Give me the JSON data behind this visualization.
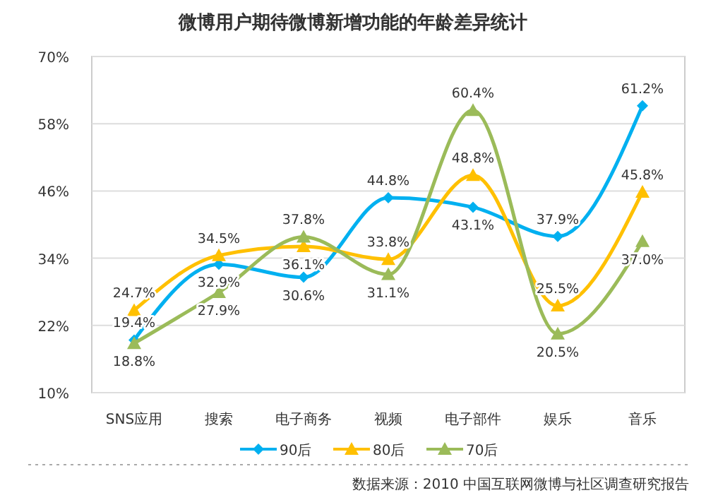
{
  "chart_data": {
    "type": "line",
    "title": "微博用户期待微博新增功能的年龄差异统计",
    "categories": [
      "SNS应用",
      "搜索",
      "电子商务",
      "视频",
      "电子部件",
      "娱乐",
      "音乐"
    ],
    "series": [
      {
        "name": "90后",
        "color": "#00b0f0",
        "marker": "diamond",
        "values": [
          19.4,
          32.9,
          30.6,
          44.8,
          43.1,
          37.9,
          61.2
        ],
        "value_labels": [
          "19.4%",
          "32.9%",
          "30.6%",
          "44.8%",
          "43.1%",
          "37.9%",
          "61.2%"
        ]
      },
      {
        "name": "80后",
        "color": "#ffc000",
        "marker": "triangle",
        "values": [
          24.7,
          34.5,
          36.1,
          33.8,
          48.8,
          25.5,
          45.8
        ],
        "value_labels": [
          "24.7%",
          "34.5%",
          "36.1%",
          "33.8%",
          "48.8%",
          "25.5%",
          "45.8%"
        ]
      },
      {
        "name": "70后",
        "color": "#9bbb59",
        "marker": "triangle",
        "values": [
          18.8,
          27.9,
          37.8,
          31.1,
          60.4,
          20.5,
          37.0
        ],
        "value_labels": [
          "18.8%",
          "27.9%",
          "37.8%",
          "31.1%",
          "60.4%",
          "20.5%",
          "37.0%"
        ]
      }
    ],
    "ylim": [
      10,
      70
    ],
    "yticks": [
      {
        "value": 10,
        "label": "10%"
      },
      {
        "value": 22,
        "label": "22%"
      },
      {
        "value": 34,
        "label": "34%"
      },
      {
        "value": 46,
        "label": "46%"
      },
      {
        "value": 58,
        "label": "58%"
      },
      {
        "value": 70,
        "label": "70%"
      }
    ],
    "grid": "y",
    "legend": "bottom",
    "annotations": [
      "数据来源：2010 中国互联网微博与社区调查研究报告"
    ]
  }
}
